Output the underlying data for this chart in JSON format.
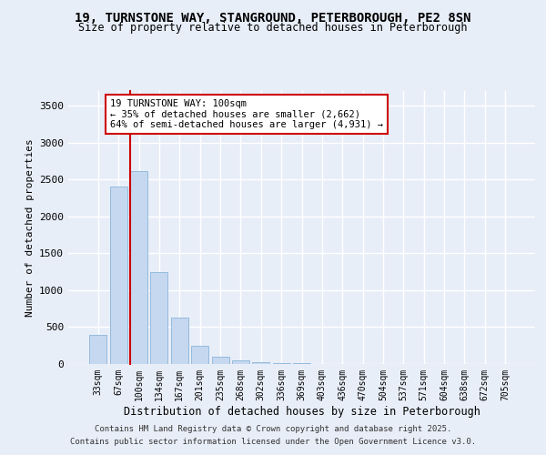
{
  "title": "19, TURNSTONE WAY, STANGROUND, PETERBOROUGH, PE2 8SN",
  "subtitle": "Size of property relative to detached houses in Peterborough",
  "xlabel": "Distribution of detached houses by size in Peterborough",
  "ylabel": "Number of detached properties",
  "categories": [
    "33sqm",
    "67sqm",
    "100sqm",
    "134sqm",
    "167sqm",
    "201sqm",
    "235sqm",
    "268sqm",
    "302sqm",
    "336sqm",
    "369sqm",
    "403sqm",
    "436sqm",
    "470sqm",
    "504sqm",
    "537sqm",
    "571sqm",
    "604sqm",
    "638sqm",
    "672sqm",
    "705sqm"
  ],
  "values": [
    390,
    2400,
    2620,
    1250,
    630,
    250,
    100,
    50,
    20,
    10,
    7,
    5,
    3,
    2,
    2,
    1,
    1,
    1,
    0,
    0,
    0
  ],
  "highlight_index": 2,
  "highlight_color": "#cc0000",
  "bar_color": "#c5d8f0",
  "bar_edge_color": "#8ab4d8",
  "ylim": [
    0,
    3700
  ],
  "yticks": [
    0,
    500,
    1000,
    1500,
    2000,
    2500,
    3000,
    3500
  ],
  "annotation_text": "19 TURNSTONE WAY: 100sqm\n← 35% of detached houses are smaller (2,662)\n64% of semi-detached houses are larger (4,931) →",
  "annotation_box_color": "#ffffff",
  "annotation_box_edge": "#cc0000",
  "footer1": "Contains HM Land Registry data © Crown copyright and database right 2025.",
  "footer2": "Contains public sector information licensed under the Open Government Licence v3.0.",
  "bg_color": "#e8eef8",
  "plot_bg_color": "#e8eef8",
  "grid_color": "#ffffff"
}
